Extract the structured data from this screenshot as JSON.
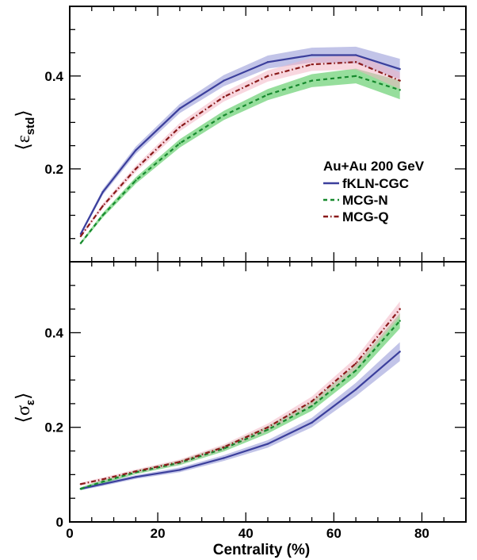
{
  "chart_data": [
    {
      "type": "line",
      "panel": "top",
      "ylabel": "⟨ε",
      "ylabel_sub": "std",
      "ylabel_close": "⟩",
      "xlim": [
        0,
        90
      ],
      "ylim": [
        0,
        0.55
      ],
      "xticks": [
        0,
        20,
        40,
        60,
        80
      ],
      "yticks": [
        0.2,
        0.4
      ],
      "ytick_labels": [
        "0.2",
        "0.4"
      ],
      "legend": {
        "title": "Au+Au 200 GeV",
        "placement": "right",
        "entries": [
          "fKLN-CGC",
          "MCG-N",
          "MCG-Q"
        ]
      },
      "series": [
        {
          "name": "fKLN-CGC",
          "color": "#3b3f9c",
          "band_color": "#8f93d6",
          "style": "solid",
          "x": [
            2.5,
            7.5,
            15,
            25,
            35,
            45,
            55,
            65,
            75
          ],
          "values": [
            0.06,
            0.15,
            0.24,
            0.33,
            0.39,
            0.43,
            0.445,
            0.445,
            0.415
          ],
          "err": [
            0.004,
            0.006,
            0.008,
            0.01,
            0.012,
            0.014,
            0.016,
            0.018,
            0.022
          ]
        },
        {
          "name": "MCG-N",
          "color": "#178a2e",
          "band_color": "#3fc24a",
          "style": "dashed",
          "x": [
            2.5,
            7.5,
            15,
            25,
            35,
            45,
            55,
            65,
            75
          ],
          "values": [
            0.04,
            0.1,
            0.175,
            0.255,
            0.315,
            0.36,
            0.39,
            0.4,
            0.37
          ],
          "err": [
            0.003,
            0.005,
            0.007,
            0.009,
            0.01,
            0.012,
            0.014,
            0.016,
            0.02
          ]
        },
        {
          "name": "MCG-Q",
          "color": "#8a1a1a",
          "band_color": "#f2b6c4",
          "style": "dashdot",
          "x": [
            2.5,
            7.5,
            15,
            25,
            35,
            45,
            55,
            65,
            75
          ],
          "values": [
            0.055,
            0.12,
            0.2,
            0.29,
            0.355,
            0.4,
            0.425,
            0.43,
            0.39
          ],
          "err": [
            0.003,
            0.005,
            0.007,
            0.009,
            0.01,
            0.012,
            0.014,
            0.016,
            0.018
          ]
        }
      ]
    },
    {
      "type": "line",
      "panel": "bottom",
      "xlabel": "Centrality (%)",
      "ylabel": "⟨σ",
      "ylabel_sub": "ε",
      "ylabel_close": "⟩",
      "xlim": [
        0,
        90
      ],
      "ylim": [
        0,
        0.55
      ],
      "xticks": [
        0,
        20,
        40,
        60,
        80
      ],
      "xtick_labels": [
        "0",
        "20",
        "40",
        "60",
        "80"
      ],
      "yticks": [
        0,
        0.2,
        0.4
      ],
      "ytick_labels": [
        "0",
        "0.2",
        "0.4"
      ],
      "series": [
        {
          "name": "fKLN-CGC",
          "color": "#3b3f9c",
          "band_color": "#8f93d6",
          "style": "solid",
          "x": [
            2.5,
            7.5,
            15,
            25,
            35,
            45,
            55,
            65,
            75
          ],
          "values": [
            0.07,
            0.08,
            0.095,
            0.11,
            0.135,
            0.165,
            0.21,
            0.28,
            0.36
          ],
          "err": [
            0.003,
            0.004,
            0.004,
            0.005,
            0.006,
            0.008,
            0.01,
            0.014,
            0.02
          ]
        },
        {
          "name": "MCG-N",
          "color": "#178a2e",
          "band_color": "#3fc24a",
          "style": "dashed",
          "x": [
            2.5,
            7.5,
            15,
            25,
            35,
            45,
            55,
            65,
            75
          ],
          "values": [
            0.07,
            0.085,
            0.105,
            0.125,
            0.155,
            0.195,
            0.245,
            0.32,
            0.425
          ],
          "err": [
            0.003,
            0.004,
            0.004,
            0.005,
            0.006,
            0.008,
            0.01,
            0.012,
            0.016
          ]
        },
        {
          "name": "MCG-Q",
          "color": "#8a1a1a",
          "band_color": "#f2b6c4",
          "style": "dashdot",
          "x": [
            2.5,
            7.5,
            15,
            25,
            35,
            45,
            55,
            65,
            75
          ],
          "values": [
            0.08,
            0.09,
            0.107,
            0.127,
            0.158,
            0.2,
            0.255,
            0.335,
            0.45
          ],
          "err": [
            0.003,
            0.004,
            0.004,
            0.005,
            0.006,
            0.008,
            0.01,
            0.012,
            0.016
          ]
        }
      ]
    }
  ]
}
